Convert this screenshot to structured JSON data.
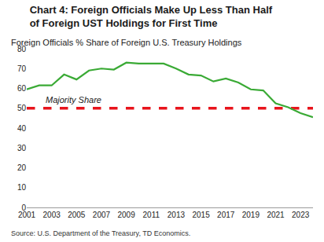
{
  "chart_data": {
    "type": "line",
    "title": "Chart 4: Foreign Officials Make Up Less Than Half of Foreign UST Holdings for First Time",
    "subtitle": "Foreign Officials % Share of Foreign U.S. Treasury Holdings",
    "source": "Source: U.S. Department of the Treasury, TD Economics.",
    "x": [
      2001,
      2002,
      2003,
      2004,
      2005,
      2006,
      2007,
      2008,
      2009,
      2010,
      2011,
      2012,
      2013,
      2014,
      2015,
      2016,
      2017,
      2018,
      2019,
      2020,
      2021,
      2022,
      2023,
      2024
    ],
    "series": [
      {
        "name": "Foreign Officials % Share of Foreign U.S. Treasury Holdings",
        "color": "#3aaa35",
        "line_style": "solid",
        "values": [
          59.5,
          61.5,
          61.5,
          67,
          64.5,
          69,
          70,
          69.5,
          73,
          72.5,
          72.5,
          72.5,
          70,
          67,
          66.5,
          63.5,
          65,
          63,
          59.5,
          59,
          52.5,
          50.5,
          47.5,
          45.5
        ]
      },
      {
        "name": "Majority Share",
        "color": "#e8141c",
        "line_style": "dashed",
        "values": [
          50,
          50,
          50,
          50,
          50,
          50,
          50,
          50,
          50,
          50,
          50,
          50,
          50,
          50,
          50,
          50,
          50,
          50,
          50,
          50,
          50,
          50,
          50,
          50
        ]
      }
    ],
    "xlim": [
      2001,
      2024
    ],
    "xticks": [
      2001,
      2003,
      2005,
      2007,
      2009,
      2011,
      2013,
      2015,
      2017,
      2019,
      2021,
      2023
    ],
    "ylim": [
      0,
      80
    ],
    "yticks": [
      0,
      10,
      20,
      30,
      40,
      50,
      60,
      70,
      80
    ],
    "grid": false
  }
}
